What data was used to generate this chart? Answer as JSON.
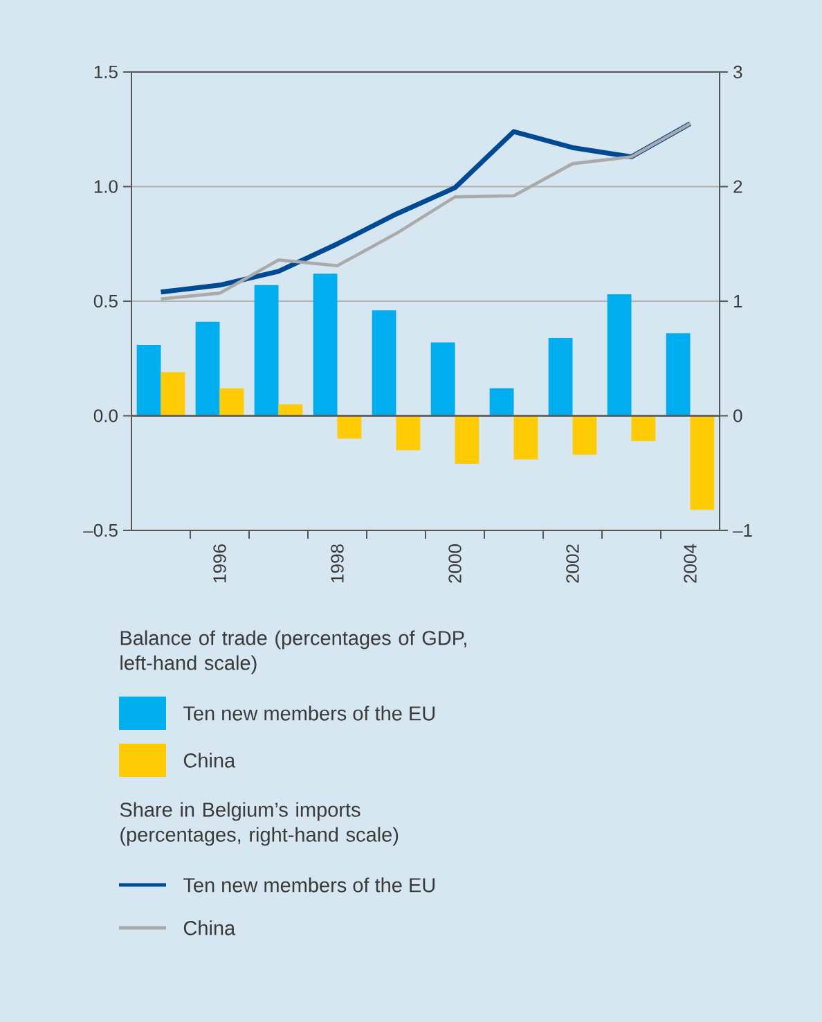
{
  "chart_data": {
    "type": "bar",
    "categories": [
      null,
      "1996",
      null,
      "1998",
      null,
      "2000",
      null,
      "2002",
      null,
      "2004"
    ],
    "series": [
      {
        "name": "Ten new members of the EU",
        "color": "#00adef",
        "values": [
          0.31,
          0.41,
          0.57,
          0.62,
          0.46,
          0.32,
          0.12,
          0.34,
          0.53,
          0.36
        ]
      },
      {
        "name": "China",
        "color": "#ffcb05",
        "values": [
          0.19,
          0.12,
          0.05,
          -0.1,
          -0.15,
          -0.21,
          -0.19,
          -0.17,
          -0.11,
          -0.41
        ]
      },
      {
        "name": "Ten new members of the EU",
        "type": "line",
        "axis": "y2",
        "color": "#004a93",
        "values": [
          1.08,
          1.14,
          1.26,
          1.5,
          1.76,
          1.99,
          2.48,
          2.34,
          2.26,
          2.55
        ]
      },
      {
        "name": "China",
        "type": "line",
        "axis": "y2",
        "color": "#aaaaaa",
        "values": [
          1.02,
          1.07,
          1.36,
          1.31,
          1.59,
          1.91,
          1.92,
          2.2,
          2.26,
          2.55
        ]
      }
    ],
    "ylim": [
      -0.5,
      1.5
    ],
    "yticks": [
      {
        "value": -0.5,
        "label": "–0.5"
      },
      {
        "value": 0,
        "label": "0.0"
      },
      0.5,
      {
        "value": 1,
        "label": "1.0"
      },
      1.5
    ],
    "y2lim": [
      -1,
      3
    ],
    "y2ticks": [
      {
        "value": -1,
        "label": "–1"
      },
      0,
      1,
      2,
      3
    ],
    "grid": "y",
    "legend": "bottom",
    "ref_lines": [
      {
        "axis": "y",
        "value": 0,
        "color": "#555555"
      }
    ],
    "annotations": [
      "Balance of trade (percentages of GDP, left-hand scale)",
      "Share in Belgium’s imports (percentages, right-hand scale)"
    ]
  }
}
